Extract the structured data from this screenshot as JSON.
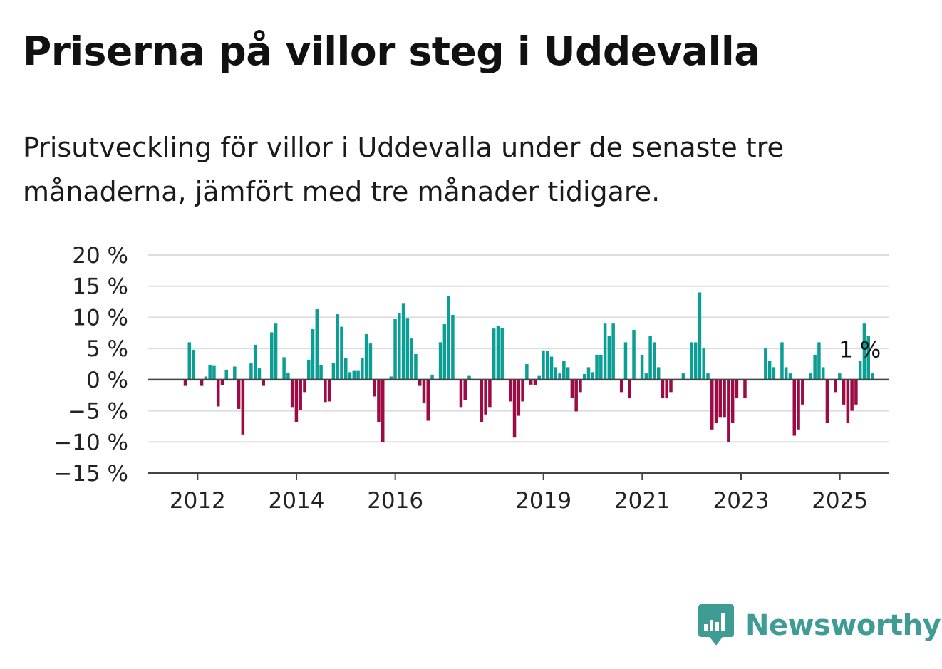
{
  "title": "Priserna på villor steg i Uddevalla",
  "subtitle": "Prisutveckling för villor i Uddevalla under de senaste tre månaderna, jämfört med tre månader tidigare.",
  "brand": {
    "name": "Newsworthy",
    "icon": "newsworthy-logo-icon",
    "color": "#3f9c94"
  },
  "colors": {
    "positive": "#0b9e95",
    "negative": "#9c0b44",
    "grid": "#dddddd",
    "axis": "#444444"
  },
  "chart_data": {
    "type": "bar",
    "ylim": [
      -15,
      20
    ],
    "yticks": [
      20,
      15,
      10,
      5,
      0,
      -5,
      -10,
      -15
    ],
    "ytick_labels": [
      "20 %",
      "15 %",
      "10 %",
      "5 %",
      "0 %",
      "−5 %",
      "−10 %",
      "−15 %"
    ],
    "xticks": [
      2012,
      2014,
      2016,
      2019,
      2021,
      2023,
      2025
    ],
    "xtick_labels": [
      "2012",
      "2014",
      "2016",
      "2019",
      "2021",
      "2023",
      "2025"
    ],
    "xlim": [
      2011.0,
      2026.0
    ],
    "start": 2011.75,
    "step": 0.0833,
    "grid": true,
    "annotation": "1 %",
    "values": [
      -1,
      6,
      4.8,
      0,
      -1,
      0.5,
      2.4,
      2.2,
      -4.3,
      -0.9,
      1.6,
      0,
      2.1,
      -4.7,
      -8.8,
      0,
      2.6,
      5.6,
      1.8,
      -1,
      0,
      7.6,
      9,
      0,
      3.6,
      1.1,
      -4.4,
      -6.8,
      -4.9,
      -2,
      3.2,
      8.1,
      11.3,
      2.3,
      -3.6,
      -3.5,
      2.7,
      10.5,
      8.5,
      3.5,
      1.2,
      1.4,
      1.4,
      3.5,
      7.3,
      5.8,
      -2.7,
      -6.8,
      -10,
      0,
      0.5,
      9.7,
      10.7,
      12.3,
      9.8,
      6.6,
      4.1,
      -1,
      -3.7,
      -6.6,
      0.8,
      0,
      6,
      8.9,
      13.4,
      10.4,
      0,
      -4.4,
      -3.3,
      0.6,
      0,
      0,
      -6.8,
      -5.6,
      -4.4,
      8.2,
      8.6,
      8.3,
      0,
      -3.5,
      -9.3,
      -5.8,
      -3.5,
      2.5,
      -0.8,
      -0.9,
      0.6,
      4.7,
      4.6,
      3.7,
      2,
      1,
      3,
      2,
      -2.9,
      -5.1,
      -2,
      0.9,
      2,
      1.2,
      4,
      4,
      9,
      7,
      9,
      0,
      -2,
      6,
      -3,
      8,
      0,
      4,
      1,
      7,
      6,
      2,
      -3,
      -3,
      -2,
      0,
      0,
      1,
      0,
      6,
      6,
      14,
      5,
      1,
      -8,
      -7,
      -6,
      -6,
      -10,
      -7,
      -3,
      0,
      -3,
      0,
      0,
      0,
      0,
      5,
      3,
      2,
      0,
      6,
      2,
      1,
      -9,
      -8,
      -4,
      0,
      1,
      4,
      6,
      2,
      -7,
      0,
      -2,
      1,
      -4,
      -7,
      -5,
      -4,
      3,
      9,
      7,
      1
    ]
  }
}
